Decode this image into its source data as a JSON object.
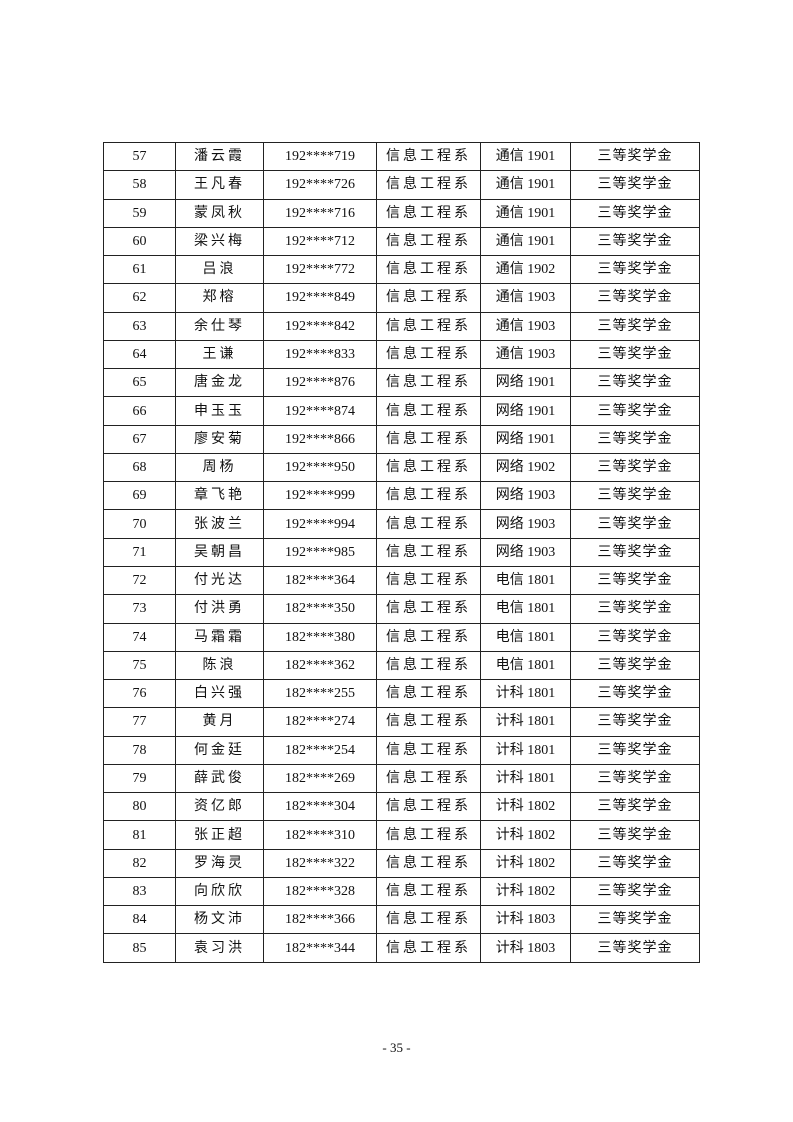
{
  "table": {
    "rows": [
      [
        "57",
        "潘云霞",
        "192****719",
        "信息工程系",
        "通信 1901",
        "三等奖学金"
      ],
      [
        "58",
        "王凡春",
        "192****726",
        "信息工程系",
        "通信 1901",
        "三等奖学金"
      ],
      [
        "59",
        "蒙凤秋",
        "192****716",
        "信息工程系",
        "通信 1901",
        "三等奖学金"
      ],
      [
        "60",
        "梁兴梅",
        "192****712",
        "信息工程系",
        "通信 1901",
        "三等奖学金"
      ],
      [
        "61",
        "吕浪",
        "192****772",
        "信息工程系",
        "通信 1902",
        "三等奖学金"
      ],
      [
        "62",
        "郑榕",
        "192****849",
        "信息工程系",
        "通信 1903",
        "三等奖学金"
      ],
      [
        "63",
        "余仕琴",
        "192****842",
        "信息工程系",
        "通信 1903",
        "三等奖学金"
      ],
      [
        "64",
        "王谦",
        "192****833",
        "信息工程系",
        "通信 1903",
        "三等奖学金"
      ],
      [
        "65",
        "唐金龙",
        "192****876",
        "信息工程系",
        "网络 1901",
        "三等奖学金"
      ],
      [
        "66",
        "申玉玉",
        "192****874",
        "信息工程系",
        "网络 1901",
        "三等奖学金"
      ],
      [
        "67",
        "廖安菊",
        "192****866",
        "信息工程系",
        "网络 1901",
        "三等奖学金"
      ],
      [
        "68",
        "周杨",
        "192****950",
        "信息工程系",
        "网络 1902",
        "三等奖学金"
      ],
      [
        "69",
        "章飞艳",
        "192****999",
        "信息工程系",
        "网络 1903",
        "三等奖学金"
      ],
      [
        "70",
        "张波兰",
        "192****994",
        "信息工程系",
        "网络 1903",
        "三等奖学金"
      ],
      [
        "71",
        "吴朝昌",
        "192****985",
        "信息工程系",
        "网络 1903",
        "三等奖学金"
      ],
      [
        "72",
        "付光达",
        "182****364",
        "信息工程系",
        "电信 1801",
        "三等奖学金"
      ],
      [
        "73",
        "付洪勇",
        "182****350",
        "信息工程系",
        "电信 1801",
        "三等奖学金"
      ],
      [
        "74",
        "马霜霜",
        "182****380",
        "信息工程系",
        "电信 1801",
        "三等奖学金"
      ],
      [
        "75",
        "陈浪",
        "182****362",
        "信息工程系",
        "电信 1801",
        "三等奖学金"
      ],
      [
        "76",
        "白兴强",
        "182****255",
        "信息工程系",
        "计科 1801",
        "三等奖学金"
      ],
      [
        "77",
        "黄月",
        "182****274",
        "信息工程系",
        "计科 1801",
        "三等奖学金"
      ],
      [
        "78",
        "何金廷",
        "182****254",
        "信息工程系",
        "计科 1801",
        "三等奖学金"
      ],
      [
        "79",
        "薛武俊",
        "182****269",
        "信息工程系",
        "计科 1801",
        "三等奖学金"
      ],
      [
        "80",
        "资亿郎",
        "182****304",
        "信息工程系",
        "计科 1802",
        "三等奖学金"
      ],
      [
        "81",
        "张正超",
        "182****310",
        "信息工程系",
        "计科 1802",
        "三等奖学金"
      ],
      [
        "82",
        "罗海灵",
        "182****322",
        "信息工程系",
        "计科 1802",
        "三等奖学金"
      ],
      [
        "83",
        "向欣欣",
        "182****328",
        "信息工程系",
        "计科 1802",
        "三等奖学金"
      ],
      [
        "84",
        "杨文沛",
        "182****366",
        "信息工程系",
        "计科 1803",
        "三等奖学金"
      ],
      [
        "85",
        "袁习洪",
        "182****344",
        "信息工程系",
        "计科 1803",
        "三等奖学金"
      ]
    ]
  },
  "footer": {
    "page_number": "- 35 -"
  }
}
